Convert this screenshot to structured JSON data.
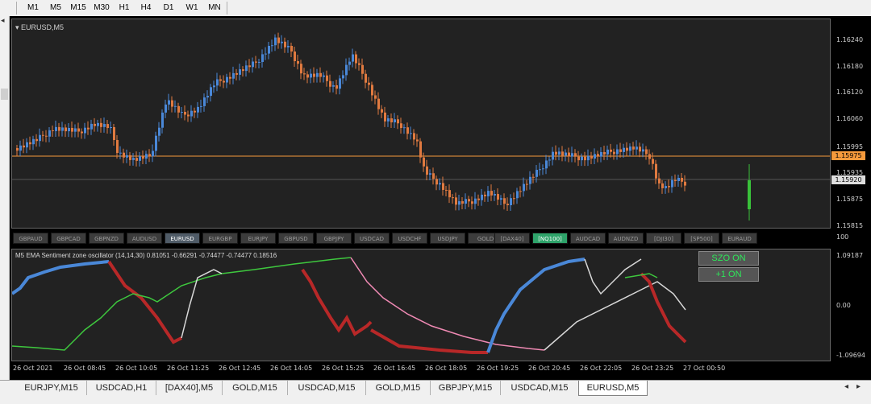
{
  "toolbar": {
    "timeframes": [
      "M1",
      "M5",
      "M15",
      "M30",
      "H1",
      "H4",
      "D1",
      "W1",
      "MN"
    ]
  },
  "main_chart": {
    "label": "EURUSD,M5",
    "price_labels": [
      "1.16240",
      "1.16180",
      "1.16120",
      "1.16060",
      "1.15995",
      "1.15935",
      "1.15875",
      "1.15815"
    ],
    "current_bid": "1.15975",
    "crosshair_price": "1.15920",
    "colors": {
      "bull": "#4a88d8",
      "bear": "#e07a40",
      "bid_line": "#f59a3c",
      "background": "#222222"
    }
  },
  "symbols": [
    {
      "label": "GBPAUD"
    },
    {
      "label": "GBPCAD"
    },
    {
      "label": "GBPNZD"
    },
    {
      "label": "AUDUSD"
    },
    {
      "label": "EURUSD"
    },
    {
      "label": "EURGBP"
    },
    {
      "label": "EURJPY"
    },
    {
      "label": "GBPUSD"
    },
    {
      "label": "GBPJPY"
    },
    {
      "label": "USDCAD"
    },
    {
      "label": "USDCHF"
    },
    {
      "label": "USDJPY"
    },
    {
      "label": "GOLD"
    },
    {
      "label": "[DAX40]"
    },
    {
      "label": "[NQ100]"
    },
    {
      "label": "AUDCAD"
    },
    {
      "label": "AUDNZD"
    },
    {
      "label": "[DJI30]"
    },
    {
      "label": "[SP500]"
    },
    {
      "label": "EURAUD"
    }
  ],
  "active_symbol": "EURUSD",
  "highlighted_symbol": "[NQ100]",
  "oscillator": {
    "title": "M5 EMA Sentiment zone oscillator (14,14,30) 0.81051 -0.66291 -0.74477 -0.74477 0.18516",
    "scale_top": "100",
    "scale_top2": "1.09187",
    "scale_mid": "0.00",
    "scale_bottom": "-1.09694",
    "button_szo": "SZO ON",
    "button_plus1": "+1 ON"
  },
  "time_labels": [
    "26 Oct 2021",
    "26 Oct 08:45",
    "26 Oct 10:05",
    "26 Oct 11:25",
    "26 Oct 12:45",
    "26 Oct 14:05",
    "26 Oct 15:25",
    "26 Oct 16:45",
    "26 Oct 18:05",
    "26 Oct 19:25",
    "26 Oct 20:45",
    "26 Oct 22:05",
    "26 Oct 23:25",
    "27 Oct 00:50"
  ],
  "tabs": [
    {
      "label": "EURJPY,M15"
    },
    {
      "label": "USDCAD,H1"
    },
    {
      "label": "[DAX40],M5"
    },
    {
      "label": "GOLD,M15"
    },
    {
      "label": "USDCAD,M15"
    },
    {
      "label": "GOLD,M15"
    },
    {
      "label": "GBPJPY,M15"
    },
    {
      "label": "USDCAD,M15"
    },
    {
      "label": "EURUSD,M5"
    }
  ],
  "active_tab": "EURUSD,M5"
}
